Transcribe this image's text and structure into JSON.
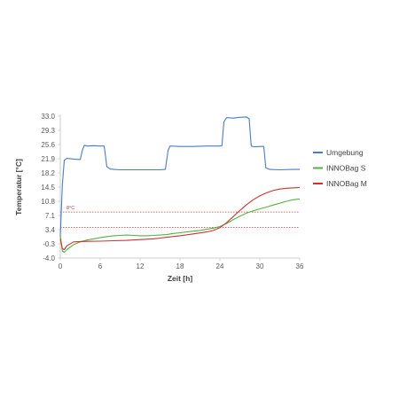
{
  "chart_data": {
    "type": "line",
    "xlabel": "Zeit [h]",
    "ylabel": "Temperatur [°C]",
    "xlim": [
      0,
      36
    ],
    "ylim": [
      -4.0,
      33.0
    ],
    "x_ticks": [
      0,
      6,
      12,
      18,
      24,
      30,
      36
    ],
    "x_tick_labels": [
      "0",
      "6",
      "12",
      "18",
      "24",
      "30",
      "36"
    ],
    "y_ticks": [
      -4.0,
      -0.3,
      3.4,
      7.1,
      10.8,
      14.5,
      18.2,
      21.9,
      25.6,
      29.3,
      33.0
    ],
    "y_tick_labels": [
      "-4.0",
      "-0.3",
      "3.4",
      "7.1",
      "10.8",
      "14.5",
      "18.2",
      "21.9",
      "25.6",
      "29.3",
      "33.0"
    ],
    "grid": false,
    "legend_position": "right",
    "reference_lines": [
      {
        "y": 8.0,
        "label": "8°C",
        "color": "#c0392b",
        "style": "dotted"
      },
      {
        "y": 4.0,
        "label": "",
        "color": "#c0392b",
        "style": "dotted"
      }
    ],
    "series": [
      {
        "name": "Umgebung",
        "color": "#4a7cc7",
        "points": [
          [
            0,
            1.5
          ],
          [
            0.3,
            15
          ],
          [
            0.6,
            21.5
          ],
          [
            1,
            22
          ],
          [
            2,
            21.8
          ],
          [
            3,
            21.7
          ],
          [
            3.3,
            24
          ],
          [
            3.6,
            25.4
          ],
          [
            4,
            25.2
          ],
          [
            5,
            25.3
          ],
          [
            6,
            25.2
          ],
          [
            6.6,
            25.2
          ],
          [
            7,
            19.8
          ],
          [
            7.5,
            19.2
          ],
          [
            9,
            19
          ],
          [
            12,
            19
          ],
          [
            15,
            19
          ],
          [
            15.8,
            19.1
          ],
          [
            16.2,
            24
          ],
          [
            16.5,
            25.2
          ],
          [
            18,
            25.1
          ],
          [
            20,
            25.1
          ],
          [
            22,
            25.2
          ],
          [
            24,
            25.2
          ],
          [
            24.3,
            25.3
          ],
          [
            24.6,
            31.5
          ],
          [
            25,
            32.6
          ],
          [
            26,
            32.5
          ],
          [
            27,
            32.7
          ],
          [
            28,
            32.8
          ],
          [
            28.4,
            32.3
          ],
          [
            28.7,
            25.2
          ],
          [
            29.2,
            25
          ],
          [
            30,
            25.1
          ],
          [
            30.6,
            25.1
          ],
          [
            30.9,
            19.5
          ],
          [
            31.5,
            19.1
          ],
          [
            33,
            19
          ],
          [
            35,
            19.1
          ],
          [
            36,
            19.1
          ]
        ]
      },
      {
        "name": "INNOBag S",
        "color": "#55b048",
        "points": [
          [
            0,
            2
          ],
          [
            0.3,
            -2.2
          ],
          [
            0.6,
            -2.5
          ],
          [
            1,
            -1.8
          ],
          [
            2,
            -0.5
          ],
          [
            3,
            0.2
          ],
          [
            4,
            0.7
          ],
          [
            5,
            1.0
          ],
          [
            6,
            1.3
          ],
          [
            7,
            1.6
          ],
          [
            8,
            1.8
          ],
          [
            9,
            1.9
          ],
          [
            10,
            2.0
          ],
          [
            11,
            1.9
          ],
          [
            12,
            1.8
          ],
          [
            13,
            1.8
          ],
          [
            14,
            1.9
          ],
          [
            15,
            2.0
          ],
          [
            16,
            2.1
          ],
          [
            17,
            2.4
          ],
          [
            18,
            2.6
          ],
          [
            19,
            2.8
          ],
          [
            20,
            3.0
          ],
          [
            21,
            3.2
          ],
          [
            22,
            3.5
          ],
          [
            23,
            3.8
          ],
          [
            24,
            4.2
          ],
          [
            25,
            5.0
          ],
          [
            26,
            6.0
          ],
          [
            27,
            6.9
          ],
          [
            28,
            7.7
          ],
          [
            29,
            8.3
          ],
          [
            30,
            8.8
          ],
          [
            31,
            9.3
          ],
          [
            32,
            9.8
          ],
          [
            33,
            10.3
          ],
          [
            34,
            10.8
          ],
          [
            35,
            11.2
          ],
          [
            36,
            11.4
          ]
        ]
      },
      {
        "name": "INNOBag M",
        "color": "#cc3333",
        "points": [
          [
            0,
            1
          ],
          [
            0.3,
            -1.5
          ],
          [
            0.6,
            -1.8
          ],
          [
            1,
            -0.8
          ],
          [
            2,
            0.2
          ],
          [
            3,
            0.3
          ],
          [
            4,
            0.35
          ],
          [
            6,
            0.4
          ],
          [
            8,
            0.5
          ],
          [
            10,
            0.6
          ],
          [
            12,
            0.8
          ],
          [
            14,
            1.0
          ],
          [
            15,
            1.2
          ],
          [
            16,
            1.4
          ],
          [
            18,
            1.8
          ],
          [
            20,
            2.3
          ],
          [
            22,
            2.8
          ],
          [
            23,
            3.2
          ],
          [
            24,
            3.9
          ],
          [
            25,
            5.2
          ],
          [
            26,
            6.8
          ],
          [
            27,
            8.4
          ],
          [
            28,
            9.9
          ],
          [
            29,
            11.2
          ],
          [
            30,
            12.2
          ],
          [
            31,
            13.0
          ],
          [
            32,
            13.6
          ],
          [
            33,
            14.0
          ],
          [
            34,
            14.2
          ],
          [
            35,
            14.3
          ],
          [
            36,
            14.4
          ]
        ]
      }
    ]
  }
}
